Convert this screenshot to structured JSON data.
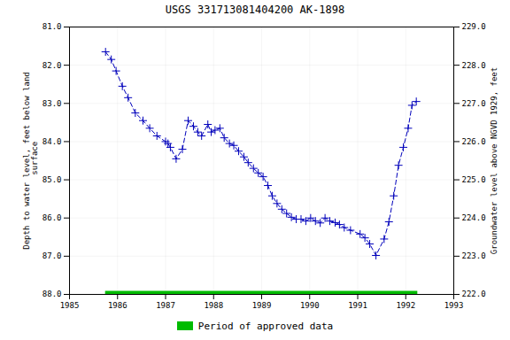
{
  "chart_data": {
    "type": "line",
    "title": "USGS 331713081404200 AK-1898",
    "ylabel": "Depth to water level, feet below land\n surface",
    "y2label": "Groundwater level above NGVD 1929, feet",
    "x": [
      1985.75,
      1985.87,
      1985.97,
      1986.1,
      1986.22,
      1986.37,
      1986.53,
      1986.67,
      1986.82,
      1987.0,
      1987.05,
      1987.1,
      1987.22,
      1987.35,
      1987.47,
      1987.58,
      1987.67,
      1987.75,
      1987.88,
      1987.95,
      1988.03,
      1988.13,
      1988.22,
      1988.33,
      1988.42,
      1988.52,
      1988.63,
      1988.72,
      1988.83,
      1988.93,
      1989.03,
      1989.13,
      1989.22,
      1989.32,
      1989.42,
      1989.52,
      1989.62,
      1989.72,
      1989.82,
      1989.92,
      1990.02,
      1990.12,
      1990.22,
      1990.32,
      1990.42,
      1990.53,
      1990.62,
      1990.72,
      1990.85,
      1991.05,
      1991.15,
      1991.25,
      1991.38,
      1991.55,
      1991.65,
      1991.75,
      1991.85,
      1991.95,
      1992.05,
      1992.13,
      1992.22
    ],
    "values": [
      81.65,
      81.85,
      82.15,
      82.55,
      82.85,
      83.25,
      83.45,
      83.65,
      83.85,
      84.0,
      84.05,
      84.15,
      84.45,
      84.2,
      83.45,
      83.6,
      83.75,
      83.85,
      83.55,
      83.75,
      83.7,
      83.65,
      83.9,
      84.05,
      84.1,
      84.25,
      84.4,
      84.55,
      84.7,
      84.82,
      84.92,
      85.15,
      85.42,
      85.62,
      85.77,
      85.88,
      85.98,
      86.03,
      86.03,
      86.08,
      86.0,
      86.08,
      86.13,
      86.0,
      86.08,
      86.12,
      86.17,
      86.25,
      86.32,
      86.42,
      86.52,
      86.68,
      86.98,
      86.55,
      86.1,
      85.42,
      84.62,
      84.15,
      83.65,
      83.05,
      82.95
    ],
    "color": "#0000bb",
    "marker": "plus",
    "line_style": "dashed",
    "xlim": [
      1985,
      1993
    ],
    "xticks": [
      1985,
      1986,
      1987,
      1988,
      1989,
      1990,
      1991,
      1992,
      1993
    ],
    "ylim": [
      88.0,
      81.0
    ],
    "yticks": [
      {
        "value": 81.0,
        "label": "81.0"
      },
      {
        "value": 82.0,
        "label": "82.0"
      },
      {
        "value": 83.0,
        "label": "83.0"
      },
      {
        "value": 84.0,
        "label": "84.0"
      },
      {
        "value": 85.0,
        "label": "85.0"
      },
      {
        "value": 86.0,
        "label": "86.0"
      },
      {
        "value": 87.0,
        "label": "87.0"
      },
      {
        "value": 88.0,
        "label": "88.0"
      }
    ],
    "y2lim": [
      222.0,
      229.0
    ],
    "y2ticks": [
      {
        "value": 222.0,
        "label": "222.0"
      },
      {
        "value": 223.0,
        "label": "223.0"
      },
      {
        "value": 224.0,
        "label": "224.0"
      },
      {
        "value": 225.0,
        "label": "225.0"
      },
      {
        "value": 226.0,
        "label": "226.0"
      },
      {
        "value": 227.0,
        "label": "227.0"
      },
      {
        "value": 228.0,
        "label": "228.0"
      },
      {
        "value": 229.0,
        "label": "229.0"
      }
    ],
    "grid": true,
    "legend": "bottom",
    "approved_period": {
      "label": "Period of approved data",
      "color": "#00bb00",
      "x": [
        1985.75,
        1992.25
      ]
    }
  }
}
